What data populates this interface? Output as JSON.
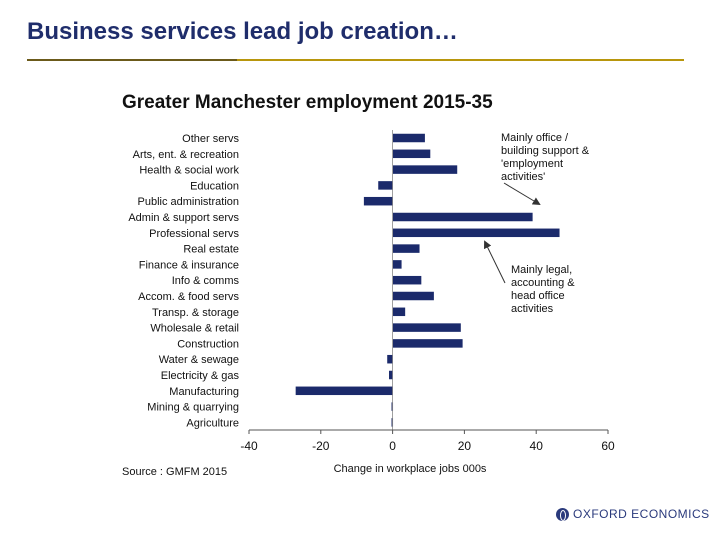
{
  "slide": {
    "title": "Business services lead job creation…",
    "logo_text": "OXFORD ECONOMICS"
  },
  "colors": {
    "title": "#1f2d6b",
    "bar": "#1b2a6b",
    "rule_gold": "#b8960c"
  },
  "chart_data": {
    "type": "bar",
    "orientation": "horizontal",
    "title": "Greater Manchester employment 2015-35",
    "xlabel": "Change in  workplace jobs 000s",
    "ylabel": "",
    "xlim": [
      -40,
      60
    ],
    "xticks": [
      -40,
      -20,
      0,
      20,
      40,
      60
    ],
    "categories": [
      "Other servs",
      "Arts, ent. & recreation",
      "Health & social work",
      "Education",
      "Public administration",
      "Admin & support servs",
      "Professional servs",
      "Real estate",
      "Finance & insurance",
      "Info & comms",
      "Accom. & food servs",
      "Transp. & storage",
      "Wholesale & retail",
      "Construction",
      "Water & sewage",
      "Electricity & gas",
      "Manufacturing",
      "Mining & quarrying",
      "Agriculture"
    ],
    "values": [
      9,
      10.5,
      18,
      -4,
      -8,
      39,
      46.5,
      7.5,
      2.5,
      8,
      11.5,
      3.5,
      19,
      19.5,
      -1.5,
      -1,
      -27,
      -0.3,
      -0.3
    ],
    "annotations": [
      {
        "text": [
          "Mainly office /",
          "building support &",
          "'employment",
          "activities'"
        ]
      },
      {
        "text": [
          "Mainly legal,",
          "accounting  &",
          "head office",
          "activities"
        ]
      }
    ],
    "source": "Source : GMFM 2015",
    "grid": false,
    "legend": "none"
  }
}
